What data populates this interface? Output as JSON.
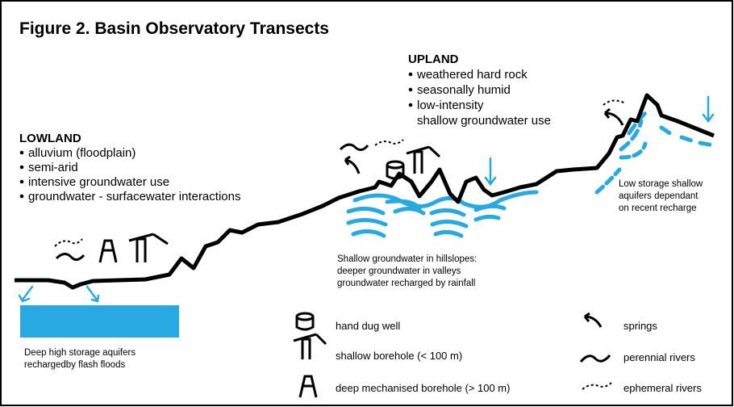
{
  "title": "Figure 2. Basin Observatory Transects",
  "lowland": {
    "heading": "LOWLAND",
    "items": [
      [
        "alluvium (floodplain)"
      ],
      [
        "semi-arid"
      ],
      [
        "intensive groundwater use"
      ],
      [
        "groundwater - surfacewater interactions"
      ]
    ]
  },
  "upland": {
    "heading": "UPLAND",
    "items": [
      [
        "weathered hard rock"
      ],
      [
        "seasonally humid"
      ],
      [
        "low-intensity",
        "shallow groundwater use"
      ]
    ]
  },
  "annotations": {
    "deep": [
      "Deep high storage aquifers",
      "rechargedby flash floods"
    ],
    "shallow": [
      "Shallow groundwater in hillslopes:",
      "deeper groundwater in valleys",
      "groundwater recharged by rainfall"
    ],
    "low_storage": [
      "Low storage shallow",
      "aquifers dependant",
      "on recent recharge"
    ]
  },
  "legend": [
    "hand dug well",
    "shallow borehole (< 100 m)",
    "deep mechanised borehole (> 100 m)",
    "springs",
    "perennial rivers",
    "ephemeral rivers"
  ]
}
